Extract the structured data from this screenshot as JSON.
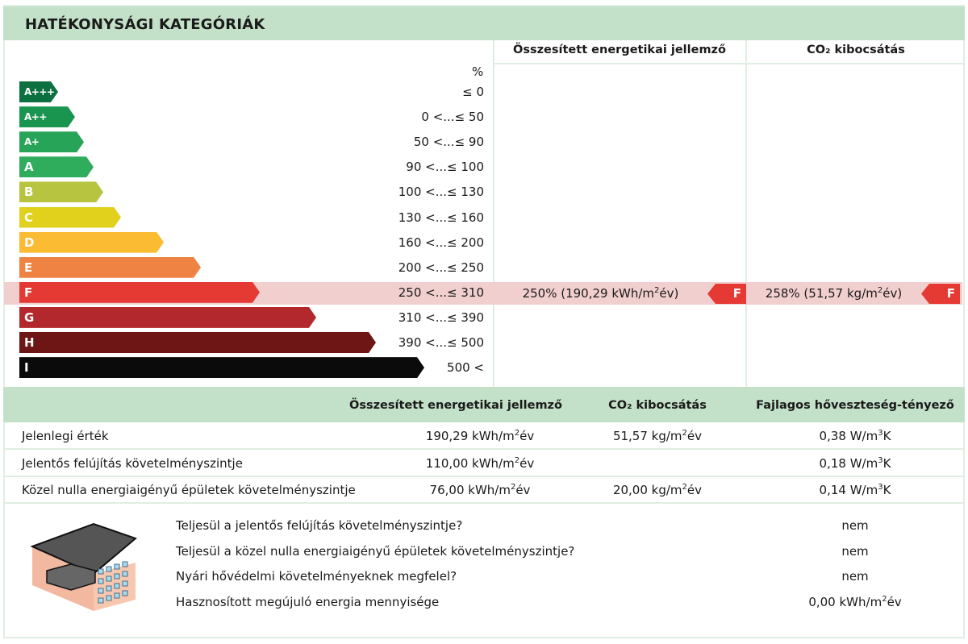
{
  "title": "HATÉKONYSÁGI KATEGÓRIÁK",
  "columns": {
    "energy": "Összesített energetikai jellemző",
    "co2": "CO₂ kibocsátás"
  },
  "percent_label": "%",
  "categories": [
    {
      "label": "A+++",
      "range": "≤ 0",
      "color": "#0d7040"
    },
    {
      "label": "A++",
      "range": "0 <...≤ 50",
      "color": "#1a9550"
    },
    {
      "label": "A+",
      "range": "50 <...≤ 90",
      "color": "#27a457"
    },
    {
      "label": "A",
      "range": "90 <...≤ 100",
      "color": "#2fac5c"
    },
    {
      "label": "B",
      "range": "100 <...≤ 130",
      "color": "#b6c43f"
    },
    {
      "label": "C",
      "range": "130 <...≤ 160",
      "color": "#e2d11c"
    },
    {
      "label": "D",
      "range": "160 <...≤ 200",
      "color": "#fbbb33"
    },
    {
      "label": "E",
      "range": "200 <...≤ 250",
      "color": "#ef8344"
    },
    {
      "label": "F",
      "range": "250 <...≤ 310",
      "color": "#e53a33"
    },
    {
      "label": "G",
      "range": "310 <...≤ 390",
      "color": "#b3282d"
    },
    {
      "label": "H",
      "range": "390 <...≤ 500",
      "color": "#6e1515"
    },
    {
      "label": "I",
      "range": "500 <",
      "color": "#0b0b0b"
    }
  ],
  "current_category": "F",
  "energy_result": "250% (190,29 kWh/m²év)",
  "co2_result": "258% (51,57 kg/m²év)",
  "table": {
    "headers": [
      "Összesített energetikai jellemző",
      "CO₂ kibocsátás",
      "Fajlagos hőveszteség-tényező"
    ],
    "rows": [
      {
        "label": "Jelenlegi érték",
        "energy": "190,29 kWh/m²év",
        "co2": "51,57 kg/m²év",
        "loss": "0,38 W/m³K"
      },
      {
        "label": "Jelentős felújítás követelményszintje",
        "energy": "110,00 kWh/m²év",
        "co2": "",
        "loss": "0,18 W/m³K"
      },
      {
        "label": "Közel nulla energiaigényű épületek követelményszintje",
        "energy": "76,00 kWh/m²év",
        "co2": "20,00 kg/m²év",
        "loss": "0,14 W/m³K"
      }
    ]
  },
  "questions": [
    {
      "q": "Teljesül a jelentős felújítás követelményszintje?",
      "a": "nem"
    },
    {
      "q": "Teljesül a közel nulla energiaigényű épületek követelményszintje?",
      "a": "nem"
    },
    {
      "q": "Nyári hővédelmi követelményeknek megfelel?",
      "a": "nem"
    },
    {
      "q": "Hasznosított megújuló energia mennyisége",
      "a": "0,00 kWh/m²év"
    }
  ]
}
